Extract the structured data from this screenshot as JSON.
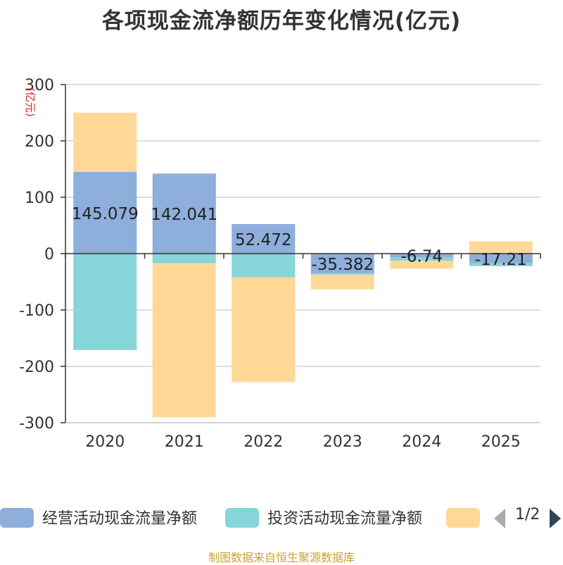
{
  "chart_data": {
    "type": "bar",
    "stacked": true,
    "title": "各项现金流净额历年变化情况(亿元)",
    "ylabel": "(亿元)",
    "ylim": [
      -300,
      300
    ],
    "yticks": [
      300,
      200,
      100,
      0,
      -100,
      -200,
      -300
    ],
    "categories": [
      "2020",
      "2021",
      "2022",
      "2023",
      "2024",
      "2025"
    ],
    "series": [
      {
        "name": "经营活动现金流量净额",
        "color": "#8eaedb",
        "values": [
          145.079,
          142.041,
          52.472,
          -35.382,
          -6.74,
          -17.21
        ],
        "labels": [
          "145.079",
          "142.041",
          "52.472",
          "-35.382",
          "-6.74",
          "-17.21"
        ]
      },
      {
        "name": "投资活动现金流量净额",
        "color": "#86d5d8",
        "values": [
          -171,
          -17,
          -42,
          -2,
          -6,
          -5
        ]
      },
      {
        "name": "",
        "color": "#ffd898",
        "values": [
          105,
          -273,
          -186,
          -26,
          -14,
          22
        ]
      }
    ]
  },
  "legend": {
    "items": [
      {
        "label": "经营活动现金流量净额",
        "color": "#8eaedb"
      },
      {
        "label": "投资活动现金流量净额",
        "color": "#86d5d8"
      },
      {
        "label": "",
        "color": "#ffd898"
      }
    ],
    "page": "1/2"
  },
  "source_note": "制图数据来自恒生聚源数据库"
}
